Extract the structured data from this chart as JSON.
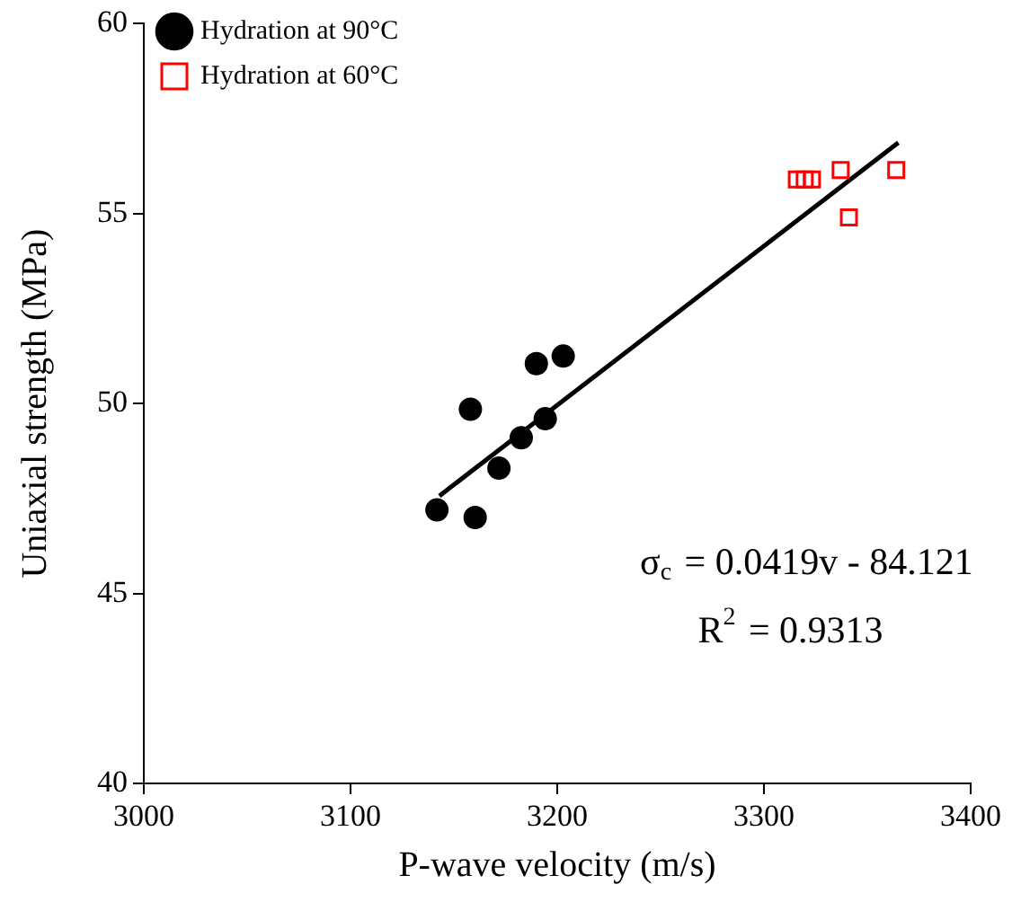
{
  "chart_data": {
    "type": "scatter",
    "xlabel": "P-wave velocity (m/s)",
    "ylabel": "Uniaxial strength (MPa)",
    "xlim": [
      3000,
      3400
    ],
    "xticks": [
      3000,
      3100,
      3200,
      3300,
      3400
    ],
    "ylim": [
      40,
      60
    ],
    "yticks": [
      40,
      45,
      50,
      55,
      60
    ],
    "grid": false,
    "legend": "top left",
    "series": [
      {
        "name": "Hydration at 90°C",
        "color": "#000000",
        "marker": "circle",
        "x": [
          3141.8,
          3160.3,
          3158,
          3171.8,
          3182.6,
          3194.2,
          3189.9,
          3202.9
        ],
        "values": [
          47.2,
          47.0,
          49.85,
          48.3,
          49.1,
          49.6,
          51.05,
          51.25
        ]
      },
      {
        "name": "Hydration at 60°C",
        "color": "#ff0000",
        "marker": "square",
        "x": [
          3315.9,
          3319.7,
          3323.2,
          3337.1,
          3341.1,
          3364
        ],
        "values": [
          55.9,
          55.9,
          55.9,
          56.15,
          54.9,
          56.15
        ]
      },
      {
        "type": "line",
        "color": "#000000",
        "marker": "none",
        "x": [
          3143,
          3365
        ],
        "values": [
          47.57,
          56.87
        ]
      }
    ],
    "annotations": [
      "σ$_{c}$ = 0.0419v - 84.121",
      "R$^{2}$ = 0.9313"
    ]
  }
}
